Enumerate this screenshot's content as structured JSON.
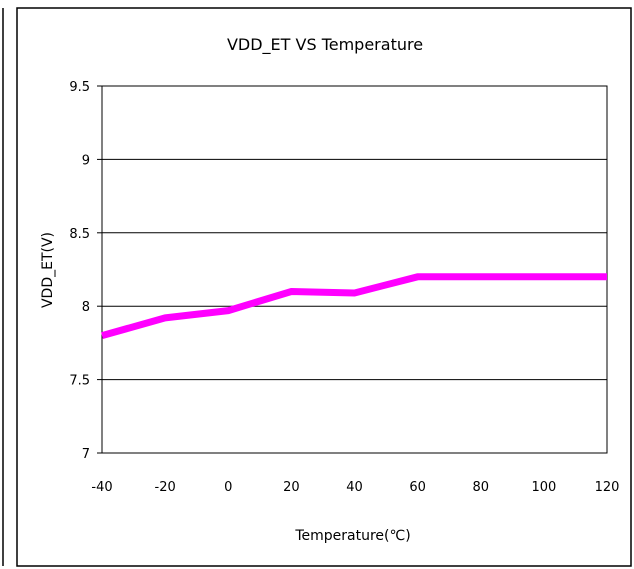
{
  "chart_data": {
    "type": "line",
    "title": "VDD_ET VS Temperature",
    "xlabel": "Temperature(℃)",
    "ylabel": "VDD_ET(V)",
    "xlim": [
      -40,
      120
    ],
    "ylim": [
      7,
      9.5
    ],
    "x_ticks": [
      "-40",
      "-20",
      "0",
      "20",
      "40",
      "60",
      "80",
      "100",
      "120"
    ],
    "y_ticks": [
      "7",
      "7.5",
      "8",
      "8.5",
      "9",
      "9.5"
    ],
    "grid": true,
    "legend": "none",
    "series": [
      {
        "color": "#FF00FF",
        "x": [
          -40,
          -20,
          0,
          20,
          40,
          60,
          80,
          100,
          120
        ],
        "values": [
          7.8,
          7.92,
          7.97,
          8.1,
          8.09,
          8.2,
          8.2,
          8.2,
          8.2
        ]
      }
    ]
  }
}
